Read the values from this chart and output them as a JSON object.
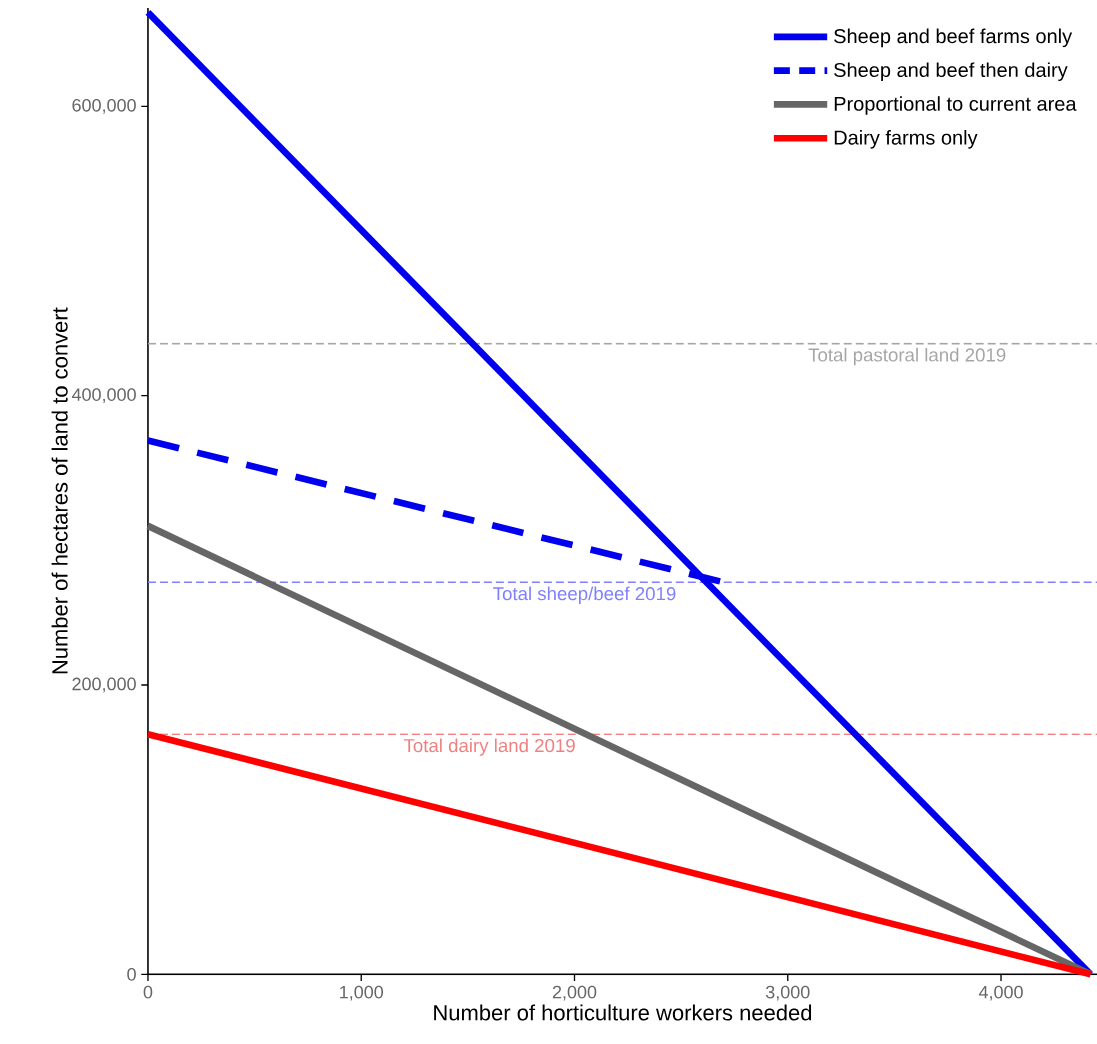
{
  "chart_data": {
    "type": "line",
    "xlabel": "Number of horticulture workers needed",
    "ylabel": "Number of hectares of land to convert",
    "xlim": [
      0,
      4450
    ],
    "ylim": [
      0,
      668000
    ],
    "xticks": [
      0,
      {
        "value": 1000,
        "label": "1,000"
      },
      {
        "value": 2000,
        "label": "2,000"
      },
      {
        "value": 3000,
        "label": "3,000"
      },
      {
        "value": 4000,
        "label": "4,000"
      }
    ],
    "yticks": [
      0,
      {
        "value": 200000,
        "label": "200,000"
      },
      {
        "value": 400000,
        "label": "400,000"
      },
      {
        "value": 600000,
        "label": "600,000"
      }
    ],
    "grid": false,
    "legend": "top right",
    "series": [
      {
        "name": "Sheep and beef farms only",
        "color": "#0000ee",
        "line_style": "solid",
        "x": [
          0,
          4420
        ],
        "values": [
          665000,
          0
        ]
      },
      {
        "name": "Sheep and beef then dairy",
        "color": "#0000ee",
        "line_style": "dashed",
        "x": [
          0,
          2700
        ],
        "values": [
          369000,
          271000
        ]
      },
      {
        "name": "Proportional to current area",
        "color": "#666666",
        "line_style": "solid",
        "x": [
          0,
          4420
        ],
        "values": [
          310000,
          0
        ]
      },
      {
        "name": "Dairy farms only",
        "color": "#ff0000",
        "line_style": "solid",
        "x": [
          0,
          4420
        ],
        "values": [
          166000,
          0
        ]
      }
    ],
    "ref_lines": [
      {
        "axis": "y",
        "value": 436000,
        "label": "Total pastoral land 2019",
        "color": "#a6a6a6",
        "line_style": "dashed"
      },
      {
        "axis": "y",
        "value": 271000,
        "label": "Total sheep/beef 2019",
        "color": "#8080ff",
        "line_style": "dashed"
      },
      {
        "axis": "y",
        "value": 166000,
        "label": "Total dairy land 2019",
        "color": "#f08080",
        "line_style": "dashed"
      }
    ]
  }
}
